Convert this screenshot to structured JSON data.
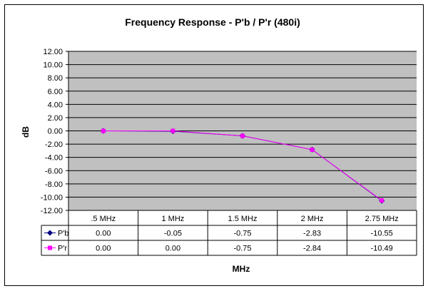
{
  "chart_data": {
    "type": "line",
    "title": "Frequency Response - P'b / P'r (480i)",
    "xlabel": "MHz",
    "ylabel": "dB",
    "categories": [
      ".5 MHz",
      "1 MHz",
      "1.5 MHz",
      "2 MHz",
      "2.75 MHz"
    ],
    "ylim": [
      -12,
      12
    ],
    "ytick_step": 2,
    "yticks": [
      "12.00",
      "10.00",
      "8.00",
      "6.00",
      "4.00",
      "2.00",
      "0.00",
      "-2.00",
      "-4.00",
      "-6.00",
      "-8.00",
      "-10.00",
      "-12.00"
    ],
    "grid": true,
    "legend": "data-table",
    "series": [
      {
        "name": "P'b",
        "values": [
          0.0,
          -0.05,
          -0.75,
          -2.83,
          -10.55
        ],
        "labels": [
          "0.00",
          "-0.05",
          "-0.75",
          "-2.83",
          "-10.55"
        ],
        "color": "#000080",
        "marker": "diamond"
      },
      {
        "name": "P'r",
        "values": [
          0.0,
          0.0,
          -0.75,
          -2.84,
          -10.49
        ],
        "labels": [
          "0.00",
          "0.00",
          "-0.75",
          "-2.84",
          "-10.49"
        ],
        "color": "#ff00ff",
        "marker": "square"
      }
    ]
  }
}
